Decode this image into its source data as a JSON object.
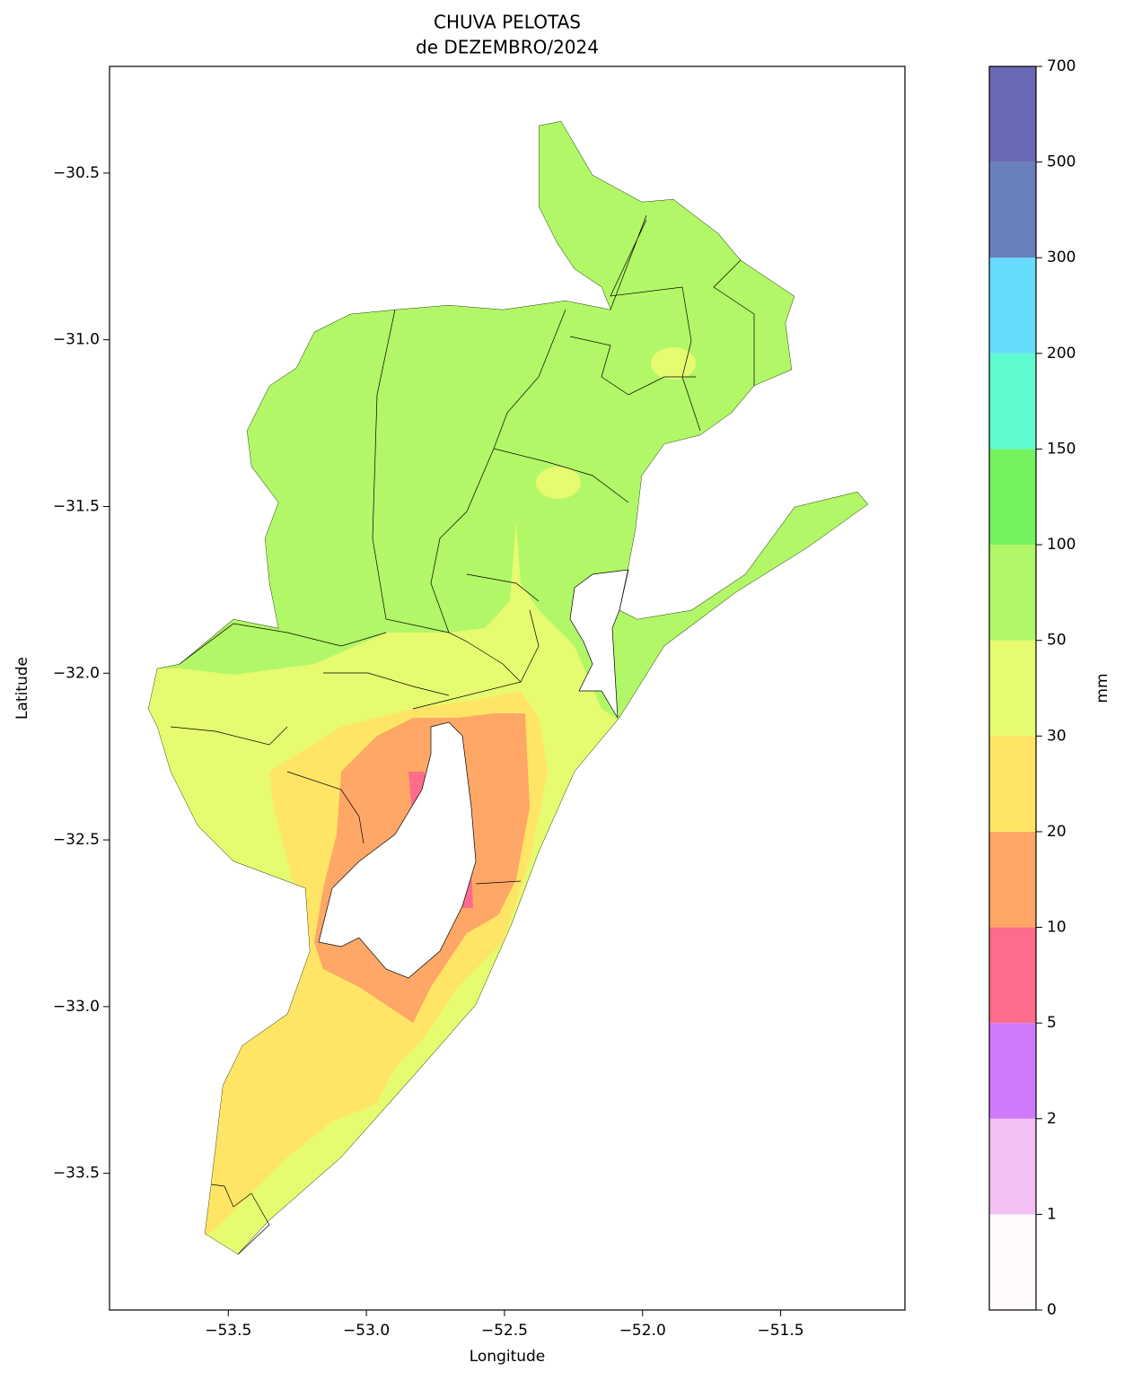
{
  "chart_data": {
    "type": "map",
    "title": "CHUVA PELOTAS",
    "subtitle": "de DEZEMBRO/2024",
    "x_label": "Longitude",
    "y_label": "Latitude",
    "xlim": [
      -53.93,
      -51.05
    ],
    "ylim": [
      -33.91,
      -30.18
    ],
    "xticks": [
      {
        "value": -53.5,
        "label": "−53.5"
      },
      {
        "value": -53.0,
        "label": "−53.0"
      },
      {
        "value": -52.5,
        "label": "−52.5"
      },
      {
        "value": -52.0,
        "label": "−52.0"
      },
      {
        "value": -51.5,
        "label": "−51.5"
      }
    ],
    "yticks": [
      {
        "value": -30.5,
        "label": "−30.5"
      },
      {
        "value": -31.0,
        "label": "−31.0"
      },
      {
        "value": -31.5,
        "label": "−31.5"
      },
      {
        "value": -32.0,
        "label": "−32.0"
      },
      {
        "value": -32.5,
        "label": "−32.5"
      },
      {
        "value": -33.0,
        "label": "−33.0"
      },
      {
        "value": -33.5,
        "label": "−33.5"
      }
    ],
    "colorbar": {
      "label": "mm",
      "levels": [
        0,
        1,
        2,
        5,
        10,
        20,
        30,
        50,
        100,
        150,
        200,
        300,
        500,
        700
      ],
      "colors": [
        "#fefafe",
        "#f4c0f4",
        "#cf7afd",
        "#ff6b8a",
        "#ffa766",
        "#ffe566",
        "#e6fb70",
        "#b1f767",
        "#77f25f",
        "#5ffbd0",
        "#65dcfe",
        "#6a80bd",
        "#6a69b5"
      ]
    }
  }
}
